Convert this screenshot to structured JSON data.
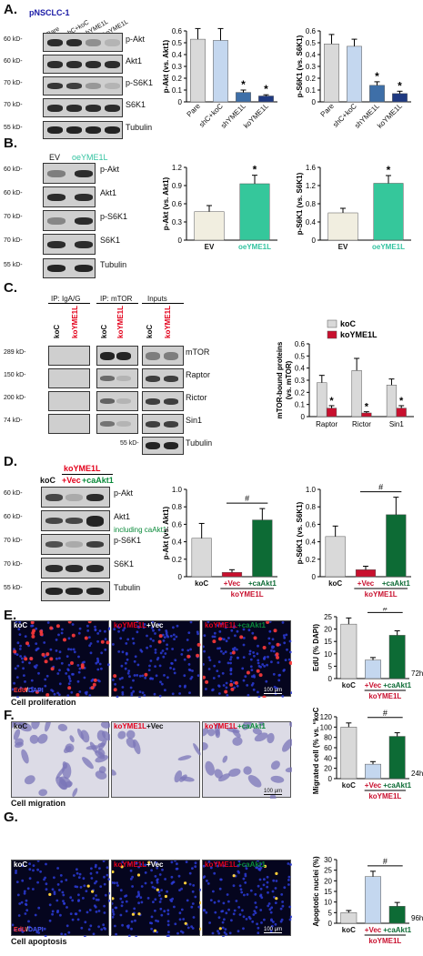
{
  "panels": {
    "A": {
      "letter": "A.",
      "cell_line": "pNSCLC-1",
      "lanes": [
        "Pare",
        "shC+koC",
        "shYME1L",
        "koYME1L"
      ],
      "mw": [
        "60 kD-",
        "60 kD-",
        "70 kD-",
        "70 kD-",
        "55 kD-"
      ],
      "blots": [
        "p-Akt",
        "Akt1",
        "p-S6K1",
        "S6K1",
        "Tubulin"
      ]
    },
    "B": {
      "letter": "B.",
      "lanes": [
        "EV",
        "oeYME1L"
      ],
      "mw": [
        "60 kD-",
        "60 kD-",
        "70 kD-",
        "70 kD-",
        "55 kD-"
      ],
      "blots": [
        "p-Akt",
        "Akt1",
        "p-S6K1",
        "S6K1",
        "Tubulin"
      ]
    },
    "C": {
      "letter": "C.",
      "groups": [
        "IP: IgA/G",
        "IP: mTOR",
        "Inputs"
      ],
      "lanes": [
        "koC",
        "koYME1L"
      ],
      "mw": [
        "289 kD-",
        "150 kD-",
        "200 kD-",
        "74 kD-",
        "55 kD-"
      ],
      "blots": [
        "mTOR",
        "Raptor",
        "Rictor",
        "Sin1",
        "Tubulin"
      ]
    },
    "D": {
      "letter": "D.",
      "group_label": "koYME1L",
      "lanes": [
        "koC",
        "+Vec",
        "+caAkt1"
      ],
      "mw": [
        "60 kD-",
        "60 kD-",
        "70 kD-",
        "70 kD-",
        "55 kD-"
      ],
      "blots": [
        "p-Akt",
        "Akt1",
        "p-S6K1",
        "S6K1",
        "Tubulin"
      ],
      "akt_note": "including caAkt1"
    },
    "E": {
      "letter": "E.",
      "titles": [
        "koC",
        "koYME1L",
        "+Vec",
        "+caAkt1"
      ],
      "stain_a": "EdU",
      "stain_sep": "/",
      "stain_b": "DAPI",
      "scale": "100 µm",
      "caption": "Cell proliferation",
      "time": "72h"
    },
    "F": {
      "letter": "F.",
      "titles": [
        "koC",
        "koYME1L",
        "+Vec",
        "+caAkt1"
      ],
      "scale": "100 µm",
      "caption": "Cell migration",
      "time": "24h"
    },
    "G": {
      "letter": "G.",
      "titles": [
        "koC",
        "koYME1L",
        "+Vec",
        "+caAkt1"
      ],
      "stain_a": "EdU",
      "stain_sep": "/",
      "stain_b": "DAPI",
      "scale": "100 µm",
      "caption": "Cell apoptosis",
      "time": "96h"
    }
  },
  "chart_data": [
    {
      "id": "A1",
      "type": "bar",
      "categories": [
        "Pare",
        "shC+koC",
        "shYME1L",
        "koYME1L"
      ],
      "values": [
        0.53,
        0.52,
        0.08,
        0.05
      ],
      "errors": [
        0.09,
        0.1,
        0.02,
        0.01
      ],
      "stars": [
        "",
        "",
        "*",
        "*"
      ],
      "ylabel": "p-Akt (vs. Akt1)",
      "ylim": [
        0,
        0.6
      ],
      "yticks": [
        "0",
        "0.1",
        "0.2",
        "0.3",
        "0.4",
        "0.5",
        "0.6"
      ],
      "colors": [
        "#d9d9d9",
        "#c4d7ef",
        "#3e6fa8",
        "#1f3a82"
      ]
    },
    {
      "id": "A2",
      "type": "bar",
      "categories": [
        "Pare",
        "shC+koC",
        "shYME1L",
        "koYME1L"
      ],
      "values": [
        0.49,
        0.47,
        0.14,
        0.07
      ],
      "errors": [
        0.08,
        0.06,
        0.03,
        0.02
      ],
      "stars": [
        "",
        "",
        "*",
        "*"
      ],
      "ylabel": "p-S6K1 (vs. S6K1)",
      "ylim": [
        0,
        0.6
      ],
      "yticks": [
        "0",
        "0.1",
        "0.2",
        "0.3",
        "0.4",
        "0.5",
        "0.6"
      ],
      "colors": [
        "#d9d9d9",
        "#c4d7ef",
        "#3e6fa8",
        "#1f3a82"
      ]
    },
    {
      "id": "B1",
      "type": "bar",
      "categories": [
        "EV",
        "oeYME1L"
      ],
      "values": [
        0.47,
        0.93
      ],
      "errors": [
        0.1,
        0.14
      ],
      "stars": [
        "",
        "*"
      ],
      "ylabel": "p-Akt (vs. Akt1)",
      "ylim": [
        0,
        1.2
      ],
      "yticks": [
        "0",
        "0.3",
        "0.6",
        "0.9",
        "1.2"
      ],
      "colors": [
        "#f1eee0",
        "#35c79b"
      ],
      "xlabel_colors": [
        "#111111",
        "#33c3a0"
      ]
    },
    {
      "id": "B2",
      "type": "bar",
      "categories": [
        "EV",
        "oeYME1L"
      ],
      "values": [
        0.6,
        1.25
      ],
      "errors": [
        0.1,
        0.17
      ],
      "stars": [
        "",
        "*"
      ],
      "ylabel": "p-S6K1 (vs. S6K1)",
      "ylim": [
        0,
        1.6
      ],
      "yticks": [
        "0",
        "0.4",
        "0.8",
        "1.2",
        "1.6"
      ],
      "colors": [
        "#f1eee0",
        "#35c79b"
      ],
      "xlabel_colors": [
        "#111111",
        "#33c3a0"
      ]
    },
    {
      "id": "C1",
      "type": "bar",
      "categories": [
        "Raptor",
        "Rictor",
        "Sin1"
      ],
      "series": [
        {
          "name": "koC",
          "values": [
            0.28,
            0.38,
            0.26
          ],
          "errors": [
            0.06,
            0.1,
            0.05
          ],
          "color": "#d9d9d9"
        },
        {
          "name": "koYME1L",
          "values": [
            0.07,
            0.03,
            0.07
          ],
          "errors": [
            0.02,
            0.01,
            0.02
          ],
          "color": "#c8102e"
        }
      ],
      "stars": [
        "*",
        "*",
        "*"
      ],
      "ylabel": "mTOR-bound proteins (vs. mTOR)",
      "ylim": [
        0,
        0.6
      ],
      "yticks": [
        "0",
        "0.1",
        "0.2",
        "0.3",
        "0.4",
        "0.5",
        "0.6"
      ],
      "legend": "top-right"
    },
    {
      "id": "D1",
      "type": "bar",
      "categories": [
        "koC",
        "+Vec",
        "+caAkt1"
      ],
      "values": [
        0.44,
        0.05,
        0.65
      ],
      "errors": [
        0.17,
        0.03,
        0.13
      ],
      "ylabel": "p-Akt (vs. Akt1)",
      "ylim": [
        0,
        1.0
      ],
      "yticks": [
        "0",
        "0.2",
        "0.4",
        "0.6",
        "0.8",
        "1.0"
      ],
      "colors": [
        "#d9d9d9",
        "#c8102e",
        "#0d6b35"
      ],
      "group_label": "koYME1L",
      "bracket": "#"
    },
    {
      "id": "D2",
      "type": "bar",
      "categories": [
        "koC",
        "+Vec",
        "+caAkt1"
      ],
      "values": [
        0.46,
        0.08,
        0.71
      ],
      "errors": [
        0.12,
        0.04,
        0.2
      ],
      "ylabel": "p-S6K1 (vs. S6K1)",
      "ylim": [
        0,
        1.0
      ],
      "yticks": [
        "0",
        "0.2",
        "0.4",
        "0.6",
        "0.8",
        "1.0"
      ],
      "colors": [
        "#d9d9d9",
        "#c8102e",
        "#0d6b35"
      ],
      "group_label": "koYME1L",
      "bracket": "#"
    },
    {
      "id": "E1",
      "type": "bar",
      "categories": [
        "koC",
        "+Vec",
        "+caAkt1"
      ],
      "values": [
        22,
        7.5,
        17.5
      ],
      "errors": [
        2.5,
        1.0,
        1.8
      ],
      "ylabel": "EdU (% DAPI)",
      "ylim": [
        0,
        25
      ],
      "yticks": [
        "0",
        "5",
        "10",
        "15",
        "20",
        "25"
      ],
      "colors": [
        "#d9d9d9",
        "#c4d7ef",
        "#0d6b35"
      ],
      "group_label": "koYME1L",
      "bracket": "#"
    },
    {
      "id": "F1",
      "type": "bar",
      "categories": [
        "koC",
        "+Vec",
        "+caAkt1"
      ],
      "values": [
        100,
        28,
        82
      ],
      "errors": [
        8,
        5,
        7
      ],
      "ylabel": "Migrated cell (% vs. “koC”)",
      "ylim": [
        0,
        120
      ],
      "yticks": [
        "0",
        "20",
        "40",
        "60",
        "80",
        "100",
        "120"
      ],
      "colors": [
        "#d9d9d9",
        "#c4d7ef",
        "#0d6b35"
      ],
      "group_label": "koYME1L",
      "bracket": "#"
    },
    {
      "id": "G1",
      "type": "bar",
      "categories": [
        "koC",
        "+Vec",
        "+caAkt1"
      ],
      "values": [
        5,
        22,
        8
      ],
      "errors": [
        1.0,
        2.5,
        1.8
      ],
      "ylabel": "Apoptotic nuclei (%)",
      "ylim": [
        0,
        30
      ],
      "yticks": [
        "0",
        "5",
        "10",
        "15",
        "20",
        "25",
        "30"
      ],
      "colors": [
        "#d9d9d9",
        "#c4d7ef",
        "#0d6b35"
      ],
      "group_label": "koYME1L",
      "bracket": "#"
    }
  ]
}
